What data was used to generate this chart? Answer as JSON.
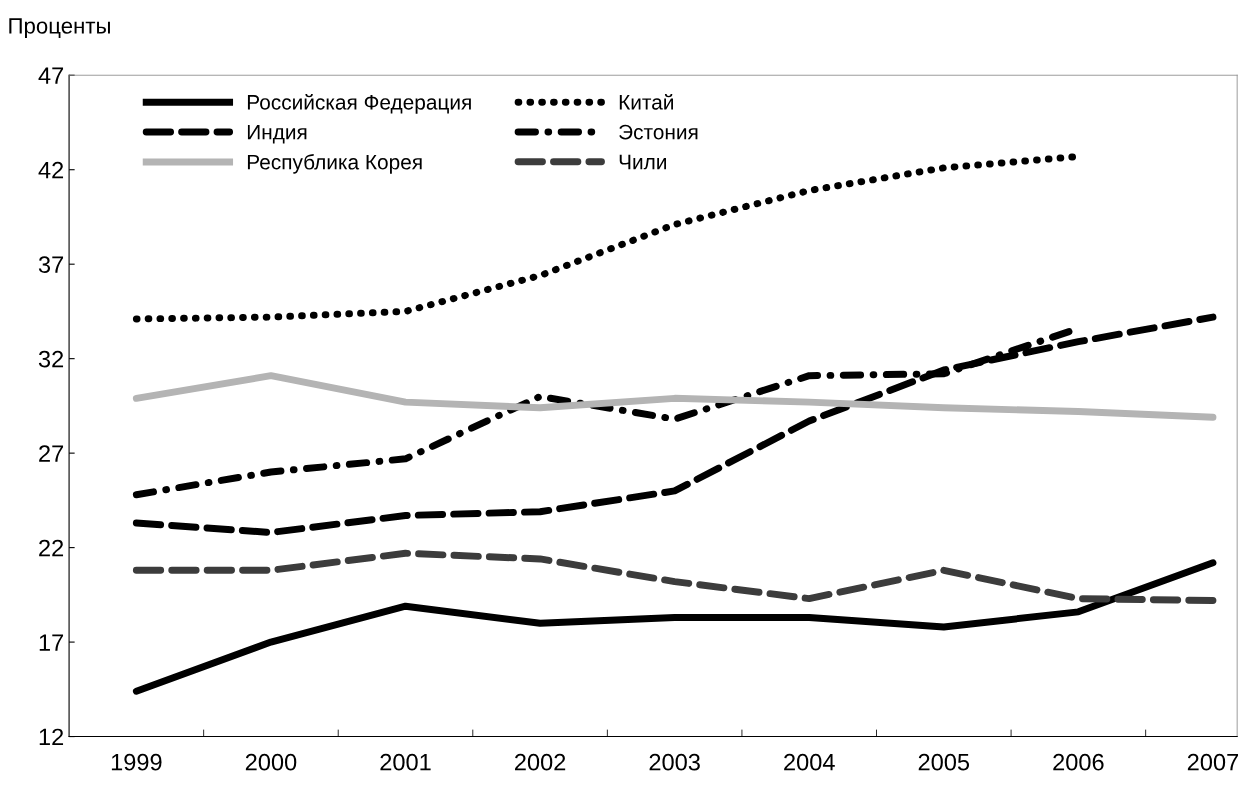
{
  "chart_data": {
    "type": "line",
    "ylabel": "Проценты",
    "categories": [
      "1999",
      "2000",
      "2001",
      "2002",
      "2003",
      "2004",
      "2005",
      "2006",
      "2007"
    ],
    "ylim": [
      12,
      47
    ],
    "yticks": [
      12,
      17,
      22,
      27,
      32,
      37,
      42,
      47
    ],
    "grid": false,
    "legend": "top left",
    "marker": "none",
    "series": [
      {
        "name": "Российская Федерация",
        "color": "#000000",
        "line_style": "solid",
        "values": [
          14.4,
          17.0,
          18.9,
          18.0,
          18.3,
          18.3,
          17.8,
          18.6,
          21.2
        ]
      },
      {
        "name": "Китай",
        "color": "#000000",
        "line_style": "dotted",
        "values": [
          34.1,
          34.2,
          34.5,
          36.4,
          39.1,
          40.9,
          42.1,
          42.7,
          null
        ]
      },
      {
        "name": "Индия",
        "color": "#000000",
        "line_style": "dashed",
        "values": [
          23.3,
          22.8,
          23.7,
          23.9,
          25.0,
          28.7,
          31.4,
          32.9,
          34.2
        ]
      },
      {
        "name": "Эстония",
        "color": "#000000",
        "line_style": "dashdot",
        "values": [
          24.8,
          26.0,
          26.7,
          30.0,
          28.8,
          31.1,
          31.2,
          33.6,
          null
        ]
      },
      {
        "name": "Республика Корея",
        "color": "#b4b4b4",
        "line_style": "solid",
        "values": [
          29.9,
          31.1,
          29.7,
          29.4,
          29.9,
          29.7,
          29.4,
          29.2,
          28.9
        ]
      },
      {
        "name": "Чили",
        "color": "#3c3c3c",
        "line_style": "dashed",
        "values": [
          20.8,
          20.8,
          21.7,
          21.4,
          20.2,
          19.3,
          20.8,
          19.3,
          19.2
        ]
      }
    ]
  }
}
